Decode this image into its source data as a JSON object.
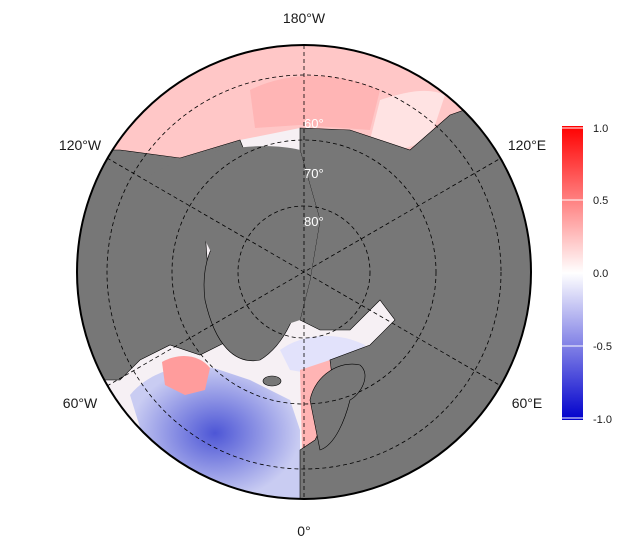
{
  "map": {
    "projection": "north polar stereographic",
    "longitude_labels": {
      "top": "180°W",
      "upper_left": "120°W",
      "upper_right": "120°E",
      "lower_left": "60°W",
      "lower_right": "60°E",
      "bottom": "0°"
    },
    "latitude_labels": [
      "60°",
      "70°",
      "80°"
    ],
    "land_color": "#777777",
    "ocean_base_color": "#ffffff",
    "graticule_color": "#000000"
  },
  "colorbar": {
    "ticks": [
      "1.0",
      "0.5",
      "0.0",
      "-0.5",
      "-1.0"
    ],
    "min": -1.0,
    "max": 1.0,
    "colors": {
      "high": "#ff0000",
      "mid": "#ffffff",
      "low": "#0000cc"
    }
  }
}
